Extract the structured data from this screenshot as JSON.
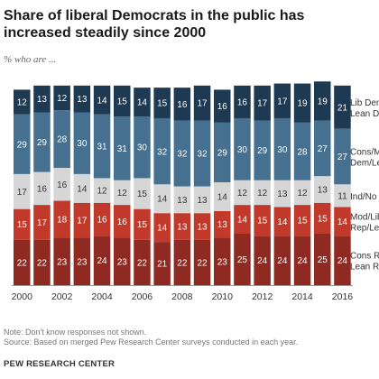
{
  "title": "Share of liberal Democrats in the public has increased steadily since 2000",
  "subtitle": "% who are ...",
  "note": "Note: Don't know responses not shown.",
  "source": "Source: Based on merged Pew Research Center surveys conducted in each year.",
  "org": "PEW RESEARCH CENTER",
  "chart_data": {
    "type": "bar",
    "stacked": true,
    "orientation": "vertical",
    "categories": [
      "2000",
      "2001",
      "2002",
      "2003",
      "2004",
      "2005",
      "2006",
      "2007",
      "2008",
      "2009",
      "2010",
      "2011",
      "2012",
      "2013",
      "2014",
      "2015",
      "2016"
    ],
    "x_tick_labels": [
      "2000",
      "2002",
      "2004",
      "2006",
      "2008",
      "2010",
      "2012",
      "2014",
      "2016"
    ],
    "series": [
      {
        "name": "Cons Rep/ Lean R",
        "label_lines": [
          "Cons Rep/",
          "Lean R"
        ],
        "color": "#8e2a22",
        "values": [
          22,
          22,
          23,
          23,
          24,
          23,
          22,
          21,
          22,
          22,
          23,
          25,
          24,
          24,
          24,
          25,
          24
        ]
      },
      {
        "name": "Mod/Lib Rep/Lean R",
        "label_lines": [
          "Mod/Lib",
          "Rep/Lean R"
        ],
        "color": "#c0392b",
        "values": [
          15,
          17,
          18,
          17,
          16,
          16,
          15,
          14,
          13,
          13,
          13,
          14,
          15,
          14,
          15,
          15,
          14
        ]
      },
      {
        "name": "Ind/No lean",
        "label_lines": [
          "Ind/No lean"
        ],
        "color": "#d6d6d6",
        "values": [
          17,
          16,
          16,
          14,
          12,
          12,
          15,
          14,
          13,
          13,
          14,
          12,
          12,
          13,
          12,
          13,
          11
        ]
      },
      {
        "name": "Cons/Mod Dem/Lean D",
        "label_lines": [
          "Cons/Mod",
          "Dem/Lean D"
        ],
        "color": "#46708f",
        "values": [
          29,
          29,
          28,
          30,
          31,
          31,
          30,
          32,
          32,
          32,
          29,
          30,
          29,
          30,
          28,
          27,
          27
        ]
      },
      {
        "name": "Lib Dem/ Lean D",
        "label_lines": [
          "Lib Dem/",
          "Lean D"
        ],
        "color": "#1e3a52",
        "values": [
          12,
          13,
          12,
          13,
          14,
          15,
          14,
          15,
          16,
          17,
          16,
          16,
          17,
          17,
          19,
          19,
          21
        ]
      }
    ]
  }
}
